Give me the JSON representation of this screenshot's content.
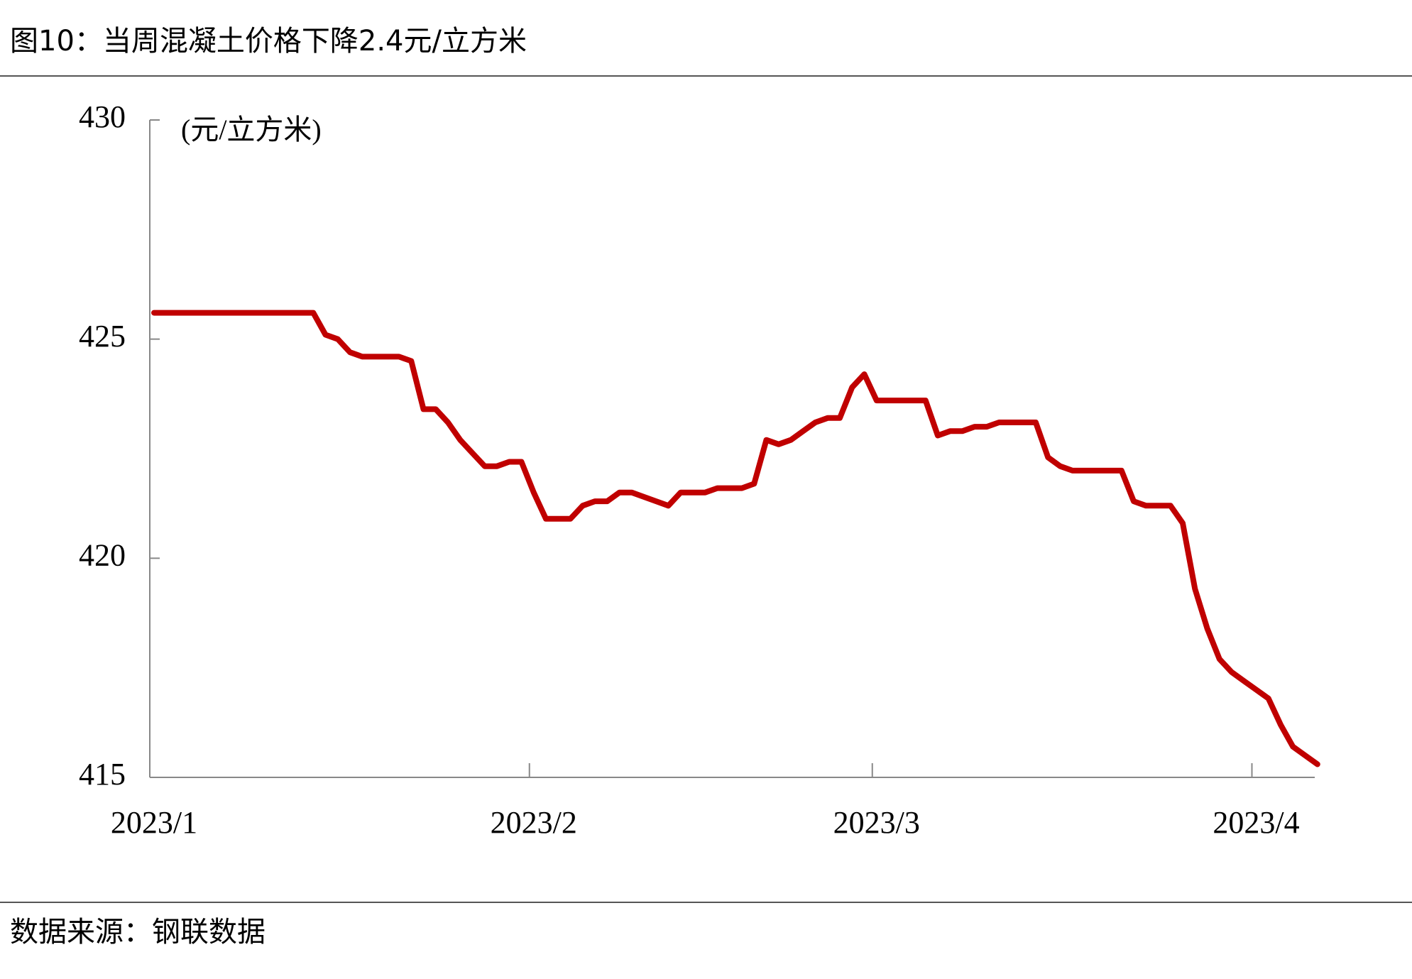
{
  "chart_data": {
    "type": "line",
    "title": "图10：当周混凝土价格下降2.4元/立方米",
    "y_unit": "(元/立方米)",
    "source": "数据来源：钢联数据",
    "categories": [
      "2023/1",
      null,
      null,
      null,
      null,
      null,
      null,
      null,
      null,
      null,
      null,
      null,
      null,
      null,
      null,
      null,
      null,
      null,
      null,
      null,
      null,
      null,
      null,
      null,
      null,
      null,
      null,
      null,
      null,
      null,
      null,
      "2023/2",
      null,
      null,
      null,
      null,
      null,
      null,
      null,
      null,
      null,
      null,
      null,
      null,
      null,
      null,
      null,
      null,
      null,
      null,
      null,
      null,
      null,
      null,
      null,
      null,
      null,
      null,
      null,
      "2023/3",
      null,
      null,
      null,
      null,
      null,
      null,
      null,
      null,
      null,
      null,
      null,
      null,
      null,
      null,
      null,
      null,
      null,
      null,
      null,
      null,
      null,
      null,
      null,
      null,
      null,
      null,
      null,
      null,
      null,
      null,
      "2023/4",
      null,
      null,
      null,
      null,
      null
    ],
    "series": [
      {
        "name": "混凝土价格",
        "color": "#c00000",
        "values": [
          425.6,
          425.6,
          425.6,
          425.6,
          425.6,
          425.6,
          425.6,
          425.6,
          425.6,
          425.6,
          425.6,
          425.6,
          425.6,
          425.6,
          425.1,
          425.0,
          424.7,
          424.6,
          424.6,
          424.6,
          424.6,
          424.5,
          423.4,
          423.4,
          423.1,
          422.7,
          422.4,
          422.1,
          422.1,
          422.2,
          422.2,
          421.5,
          420.9,
          420.9,
          420.9,
          421.2,
          421.3,
          421.3,
          421.5,
          421.5,
          421.4,
          421.3,
          421.2,
          421.5,
          421.5,
          421.5,
          421.6,
          421.6,
          421.6,
          421.7,
          422.7,
          422.6,
          422.7,
          422.9,
          423.1,
          423.2,
          423.2,
          423.9,
          424.2,
          423.6,
          423.6,
          423.6,
          423.6,
          423.6,
          422.8,
          422.9,
          422.9,
          423.0,
          423.0,
          423.1,
          423.1,
          423.1,
          423.1,
          422.3,
          422.1,
          422.0,
          422.0,
          422.0,
          422.0,
          422.0,
          421.3,
          421.2,
          421.2,
          421.2,
          420.8,
          419.3,
          418.4,
          417.7,
          417.4,
          417.2,
          417.0,
          416.8,
          416.2,
          415.7,
          415.5,
          415.3
        ]
      }
    ],
    "ylim": [
      415,
      430
    ],
    "yticks": [
      415,
      420,
      425,
      430
    ],
    "grid": false
  }
}
